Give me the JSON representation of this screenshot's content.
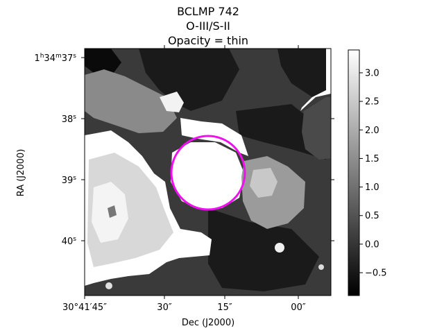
{
  "chart_data": {
    "type": "heatmap",
    "title_lines": [
      "BCLMP 742",
      "O-III/S-II",
      "Opacity = thin"
    ],
    "xlabel": "Dec (J2000)",
    "ylabel": "RA (J2000)",
    "x_ticks": [
      "30°41′45″",
      "30″",
      "15″",
      "00″"
    ],
    "y_ticks": [
      {
        "h": "1",
        "m": "34",
        "s": "37",
        "label": "1h34m37s"
      },
      {
        "label": "38s"
      },
      {
        "label": "39s"
      },
      {
        "label": "40s"
      }
    ],
    "colorbar": {
      "colormap": "gray",
      "range": [
        -0.9,
        3.4
      ],
      "ticks": [
        "3.0",
        "2.5",
        "2.0",
        "1.5",
        "1.0",
        "0.5",
        "0.0",
        "−0.5"
      ],
      "tick_values": [
        3.0,
        2.5,
        2.0,
        1.5,
        1.0,
        0.5,
        0.0,
        -0.5
      ]
    },
    "aperture": {
      "shape": "circle",
      "color": "#ee10ee"
    },
    "masked_color": "#ffffff"
  }
}
